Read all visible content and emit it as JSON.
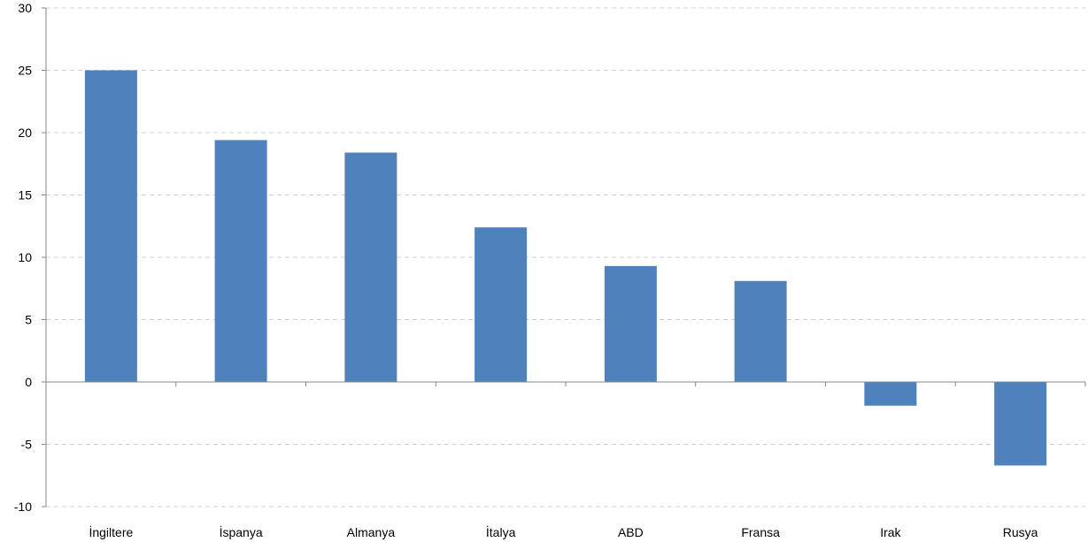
{
  "chart_data": {
    "type": "bar",
    "title": "",
    "xlabel": "",
    "ylabel": "",
    "categories": [
      "İngiltere",
      "İspanya",
      "Almanya",
      "İtalya",
      "ABD",
      "Fransa",
      "Irak",
      "Rusya"
    ],
    "values": [
      25.0,
      19.4,
      18.4,
      12.4,
      9.3,
      8.1,
      -1.9,
      -6.7
    ],
    "ylim": [
      -10,
      30
    ],
    "yticks": [
      30,
      25,
      20,
      15,
      10,
      5,
      0,
      -5,
      -10
    ],
    "grid": true,
    "legend": "none",
    "bar_color": "#4f81bd"
  }
}
